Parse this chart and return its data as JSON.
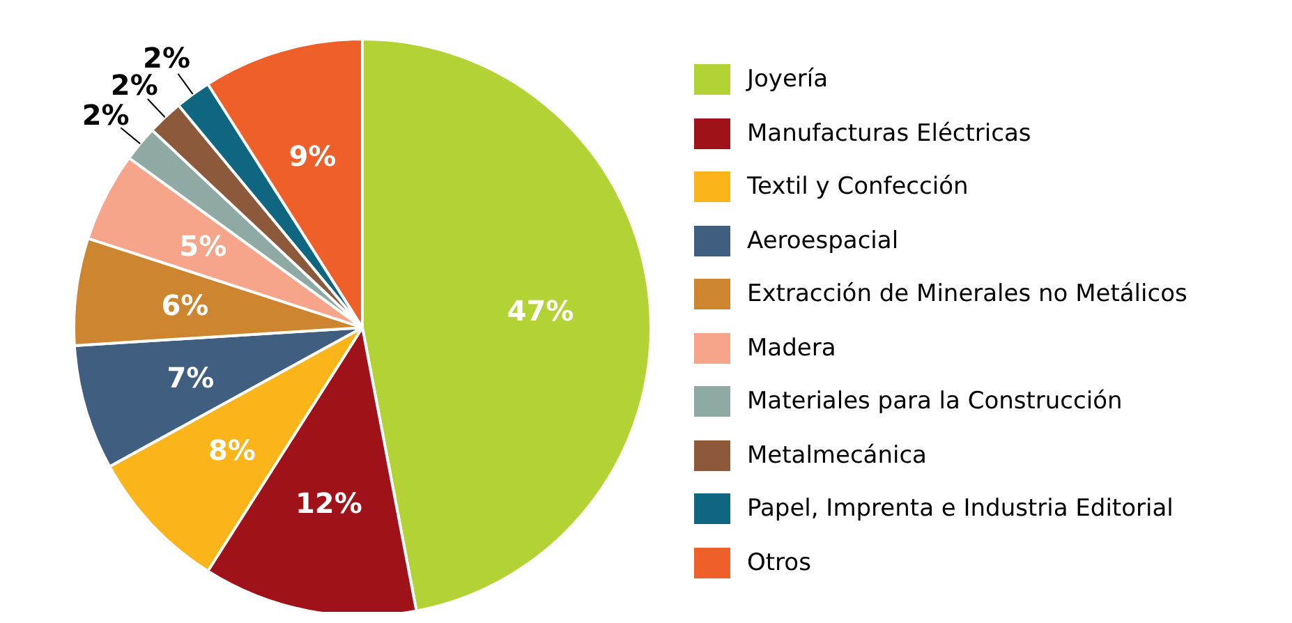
{
  "chart_data": {
    "type": "pie",
    "categories": [
      "Joyería",
      "Manufacturas Eléctricas",
      "Textil y Confección",
      "Aeroespacial",
      "Extracción de Minerales no Metálicos",
      "Madera",
      "Materiales para la Construcción",
      "Metalmecánica",
      "Papel, Imprenta e Industria Editorial",
      "Otros"
    ],
    "values": [
      47,
      12,
      8,
      7,
      6,
      5,
      2,
      2,
      2,
      9
    ],
    "value_labels": [
      "47%",
      "12%",
      "8%",
      "7%",
      "6%",
      "5%",
      "2%",
      "2%",
      "2%",
      "9%"
    ],
    "colors": [
      "#b2d235",
      "#a0121a",
      "#fbb51a",
      "#3f5e80",
      "#cd8530",
      "#f6a58a",
      "#8fa9a5",
      "#8c5a3a",
      "#0f6680",
      "#ef5f2a"
    ],
    "legend": "right"
  }
}
